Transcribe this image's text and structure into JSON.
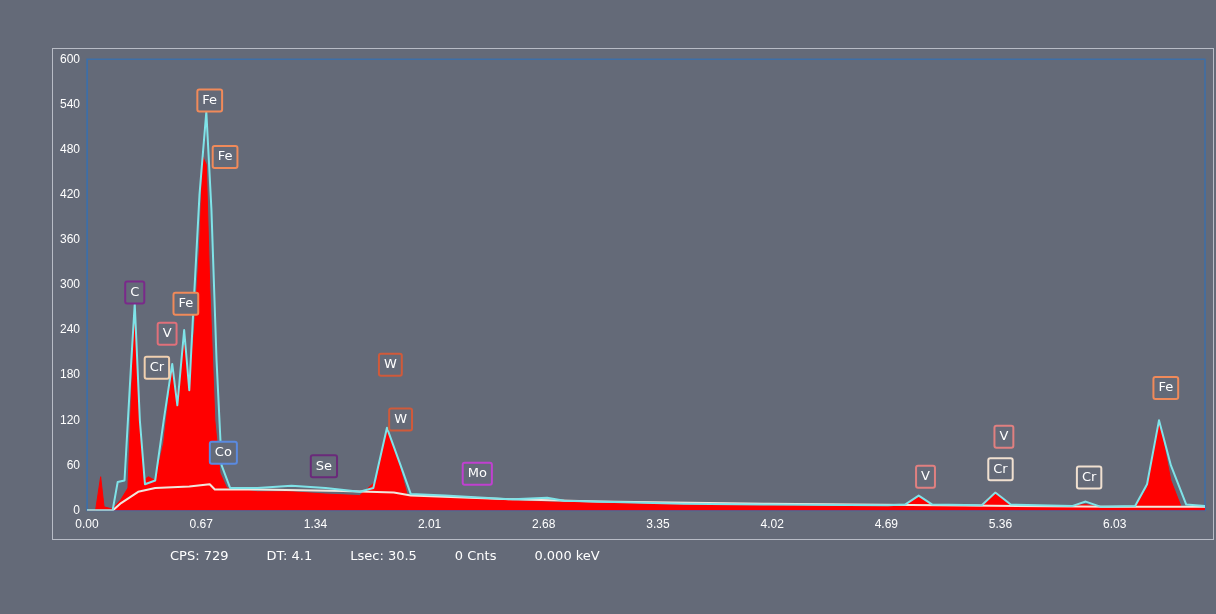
{
  "chart_data": {
    "type": "area",
    "xlim": [
      0,
      6.56
    ],
    "ylim": [
      0,
      600
    ],
    "xticks": [
      {
        "value": 0,
        "label": "0.00"
      },
      0.67,
      1.34,
      2.01,
      2.68,
      3.35,
      4.02,
      4.69,
      5.36,
      6.03
    ],
    "yticks": [
      0,
      60,
      120,
      180,
      240,
      300,
      360,
      420,
      480,
      540,
      600
    ],
    "grid": false,
    "legend": false,
    "marker": "none",
    "series": [
      {
        "color": "#ff0000",
        "x": [
          0,
          0.05,
          0.08,
          0.1,
          0.15,
          0.2,
          0.24,
          0.26,
          0.28,
          0.3,
          0.33,
          0.36,
          0.4,
          0.45,
          0.5,
          0.53,
          0.57,
          0.6,
          0.63,
          0.66,
          0.68,
          0.7,
          0.72,
          0.75,
          0.78,
          0.82,
          0.9,
          1.0,
          1.2,
          1.4,
          1.6,
          1.7,
          1.76,
          1.82,
          1.88,
          2.0,
          2.3,
          2.6,
          3.0,
          3.5,
          4.0,
          4.5,
          4.8,
          4.88,
          4.96,
          5.2,
          5.25,
          5.33,
          5.42,
          5.7,
          5.86,
          5.95,
          6.15,
          6.22,
          6.29,
          6.36,
          6.42,
          6.56
        ],
        "values": [
          0,
          0,
          45,
          5,
          2,
          15,
          30,
          150,
          265,
          150,
          40,
          45,
          40,
          90,
          190,
          150,
          220,
          170,
          240,
          350,
          470,
          460,
          300,
          120,
          50,
          30,
          28,
          25,
          25,
          22,
          20,
          40,
          110,
          70,
          20,
          18,
          15,
          12,
          10,
          8,
          7,
          6,
          8,
          18,
          8,
          6,
          8,
          25,
          8,
          5,
          8,
          4,
          5,
          30,
          120,
          40,
          5,
          3
        ]
      },
      {
        "type": "line",
        "color": "#7fe3e8",
        "x": [
          0,
          0.15,
          0.18,
          0.22,
          0.26,
          0.28,
          0.31,
          0.34,
          0.4,
          0.45,
          0.5,
          0.53,
          0.57,
          0.6,
          0.62,
          0.66,
          0.7,
          0.73,
          0.76,
          0.79,
          0.84,
          1.0,
          1.2,
          1.4,
          1.6,
          1.68,
          1.76,
          1.84,
          1.9,
          2.1,
          2.5,
          2.7,
          2.8,
          3.5,
          4.0,
          4.7,
          4.8,
          4.88,
          4.96,
          5.25,
          5.33,
          5.42,
          5.78,
          5.86,
          5.95,
          6.15,
          6.22,
          6.29,
          6.36,
          6.45,
          6.56
        ],
        "values": [
          0,
          0,
          38,
          40,
          200,
          275,
          120,
          35,
          40,
          120,
          195,
          140,
          240,
          160,
          250,
          420,
          530,
          400,
          200,
          60,
          30,
          30,
          33,
          30,
          25,
          30,
          110,
          60,
          22,
          20,
          15,
          17,
          13,
          9,
          8,
          7,
          8,
          20,
          8,
          7,
          24,
          8,
          6,
          12,
          5,
          6,
          35,
          120,
          60,
          8,
          6
        ]
      },
      {
        "type": "line",
        "color": "#f0e6dc",
        "x": [
          0,
          0.15,
          0.2,
          0.3,
          0.4,
          0.6,
          0.72,
          0.75,
          1.0,
          1.5,
          1.8,
          1.9,
          2.5,
          3.0,
          4.0,
          5.0,
          6.0,
          6.56
        ],
        "values": [
          0,
          0,
          10,
          25,
          30,
          32,
          35,
          28,
          28,
          26,
          24,
          20,
          15,
          12,
          9,
          7,
          5,
          5
        ]
      }
    ],
    "annotations": [
      {
        "text": "C",
        "x": 0.28,
        "y": 290
      },
      {
        "text": "V",
        "x": 0.47,
        "y": 235
      },
      {
        "text": "Fe",
        "x": 0.58,
        "y": 275
      },
      {
        "text": "Cr",
        "x": 0.41,
        "y": 190
      },
      {
        "text": "Fe",
        "x": 0.72,
        "y": 545
      },
      {
        "text": "Fe",
        "x": 0.81,
        "y": 470
      },
      {
        "text": "Co",
        "x": 0.8,
        "y": 77
      },
      {
        "text": "Se",
        "x": 1.39,
        "y": 59
      },
      {
        "text": "W",
        "x": 1.78,
        "y": 194
      },
      {
        "text": "W",
        "x": 1.84,
        "y": 121
      },
      {
        "text": "Mo",
        "x": 2.29,
        "y": 49
      },
      {
        "text": "V",
        "x": 4.92,
        "y": 45
      },
      {
        "text": "Cr",
        "x": 5.36,
        "y": 55
      },
      {
        "text": "V",
        "x": 5.38,
        "y": 98
      },
      {
        "text": "Cr",
        "x": 5.88,
        "y": 44
      },
      {
        "text": "Fe",
        "x": 6.33,
        "y": 163
      },
      "CPS: 729",
      "DT: 4.1",
      "Lsec: 30.5",
      "0 Cnts",
      "0.000 keV"
    ]
  }
}
